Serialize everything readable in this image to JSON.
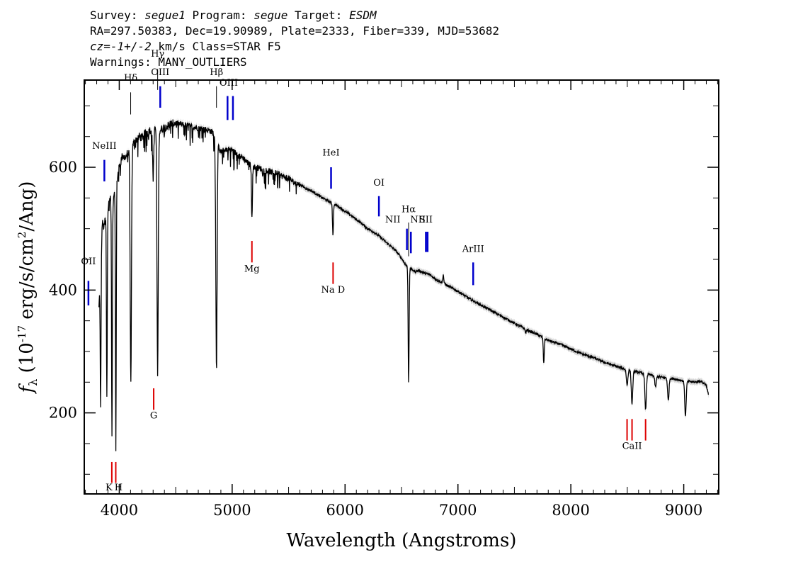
{
  "header": {
    "line1_a": "Survey: ",
    "line1_b": "segue1",
    "line1_c": " Program: ",
    "line1_d": "segue",
    "line1_e": " Target: ",
    "line1_f": "ESDM",
    "line2": "RA=297.50383, Dec=19.90989, Plate=2333, Fiber=339, MJD=53682",
    "line3_a": "cz=-1+/-2",
    "line3_b": " km/s Class=STAR F5",
    "line4": "Warnings: MANY_OUTLIERS"
  },
  "chart_data": {
    "type": "line",
    "xlabel": "Wavelength (Angstroms)",
    "ylabel": "f_λ (10^-17 erg/s/cm^2/Ang)",
    "xlim": [
      3690,
      9310
    ],
    "ylim": [
      68,
      742
    ],
    "x_ticks": [
      4000,
      5000,
      6000,
      7000,
      8000,
      9000
    ],
    "y_ticks": [
      200,
      400,
      600
    ],
    "series": [
      {
        "color": "#000000",
        "points": [
          [
            3820,
            370
          ],
          [
            3835,
            440
          ],
          [
            3850,
            510
          ],
          [
            3865,
            500
          ],
          [
            3880,
            525
          ],
          [
            3900,
            535
          ],
          [
            3920,
            550
          ],
          [
            3940,
            540
          ],
          [
            3955,
            560
          ],
          [
            3975,
            575
          ],
          [
            4000,
            600
          ],
          [
            4030,
            620
          ],
          [
            4050,
            615
          ],
          [
            4080,
            625
          ],
          [
            4100,
            630
          ],
          [
            4130,
            640
          ],
          [
            4150,
            645
          ],
          [
            4180,
            650
          ],
          [
            4200,
            648
          ],
          [
            4230,
            655
          ],
          [
            4260,
            660
          ],
          [
            4300,
            662
          ],
          [
            4330,
            665
          ],
          [
            4360,
            660
          ],
          [
            4400,
            665
          ],
          [
            4450,
            670
          ],
          [
            4500,
            672
          ],
          [
            4550,
            670
          ],
          [
            4600,
            668
          ],
          [
            4650,
            666
          ],
          [
            4700,
            664
          ],
          [
            4750,
            662
          ],
          [
            4800,
            660
          ],
          [
            4830,
            656
          ],
          [
            4900,
            625
          ],
          [
            4950,
            630
          ],
          [
            5000,
            628
          ],
          [
            5050,
            620
          ],
          [
            5100,
            615
          ],
          [
            5150,
            605
          ],
          [
            5200,
            600
          ],
          [
            5250,
            598
          ],
          [
            5300,
            595
          ],
          [
            5350,
            592
          ],
          [
            5400,
            590
          ],
          [
            5450,
            585
          ],
          [
            5500,
            582
          ],
          [
            5550,
            575
          ],
          [
            5600,
            572
          ],
          [
            5650,
            566
          ],
          [
            5700,
            562
          ],
          [
            5750,
            556
          ],
          [
            5800,
            550
          ],
          [
            5850,
            545
          ],
          [
            5900,
            540
          ],
          [
            5950,
            535
          ],
          [
            6000,
            528
          ],
          [
            6050,
            522
          ],
          [
            6100,
            515
          ],
          [
            6150,
            508
          ],
          [
            6200,
            500
          ],
          [
            6250,
            495
          ],
          [
            6300,
            488
          ],
          [
            6350,
            480
          ],
          [
            6400,
            472
          ],
          [
            6450,
            464
          ],
          [
            6500,
            452
          ],
          [
            6540,
            440
          ],
          [
            6620,
            430
          ],
          [
            6650,
            432
          ],
          [
            6700,
            428
          ],
          [
            6750,
            425
          ],
          [
            6800,
            418
          ],
          [
            6900,
            408
          ],
          [
            7000,
            398
          ],
          [
            7100,
            386
          ],
          [
            7200,
            376
          ],
          [
            7300,
            366
          ],
          [
            7400,
            356
          ],
          [
            7500,
            346
          ],
          [
            7600,
            336
          ],
          [
            7700,
            328
          ],
          [
            7800,
            318
          ],
          [
            7900,
            312
          ],
          [
            8000,
            304
          ],
          [
            8100,
            296
          ],
          [
            8200,
            290
          ],
          [
            8300,
            282
          ],
          [
            8400,
            276
          ],
          [
            8500,
            270
          ],
          [
            8600,
            266
          ],
          [
            8700,
            262
          ],
          [
            8800,
            258
          ],
          [
            8900,
            256
          ],
          [
            9000,
            252
          ],
          [
            9100,
            250
          ],
          [
            9150,
            252
          ],
          [
            9200,
            245
          ],
          [
            9220,
            228
          ]
        ],
        "absorption": [
          [
            3835,
            205
          ],
          [
            3890,
            220
          ],
          [
            3935,
            155
          ],
          [
            3970,
            148
          ],
          [
            4102,
            255
          ],
          [
            4340,
            265
          ],
          [
            4861,
            288
          ],
          [
            4300,
            590
          ],
          [
            5175,
            520
          ],
          [
            5270,
            590
          ],
          [
            5893,
            490
          ],
          [
            6563,
            250
          ],
          [
            6870,
            425
          ],
          [
            7600,
            330
          ],
          [
            7760,
            280
          ],
          [
            8498,
            245
          ],
          [
            8542,
            215
          ],
          [
            8662,
            205
          ],
          [
            8750,
            242
          ],
          [
            8863,
            220
          ],
          [
            9015,
            195
          ]
        ]
      }
    ],
    "emission_lines": [
      {
        "label": "OII",
        "x": 3727,
        "y_top": 415,
        "y_bottom": 375,
        "label_y": 442
      },
      {
        "label": "NeIII",
        "x": 3868,
        "y_top": 612,
        "y_bottom": 577,
        "label_y": 630
      },
      {
        "label": "Hδ",
        "x": 4101,
        "y_top": 722,
        "y_bottom": 686,
        "label_y": 741
      },
      {
        "label": "Hγ",
        "x": 4340,
        "y_top": 760,
        "y_bottom": 726,
        "label_y": 780
      },
      {
        "label": "OIII",
        "x": 4363,
        "y_top": 732,
        "y_bottom": 697,
        "label_y": 750
      },
      {
        "label": "Hβ",
        "x": 4861,
        "y_top": 732,
        "y_bottom": 697,
        "label_y": 750
      },
      {
        "label": "OIII",
        "x": 4959,
        "y_top": 716,
        "y_bottom": 677,
        "label_y": 733
      },
      {
        "label": "OIII",
        "x": 5007,
        "y_top": 716,
        "y_bottom": 677,
        "label_y": 733
      },
      {
        "label": "HeI",
        "x": 5876,
        "y_top": 600,
        "y_bottom": 565,
        "label_y": 619
      },
      {
        "label": "OI",
        "x": 6300,
        "y_top": 553,
        "y_bottom": 520,
        "label_y": 570
      },
      {
        "label": "NII",
        "x": 6548,
        "y_top": 500,
        "y_bottom": 465,
        "label_y": 510
      },
      {
        "label": "Hα",
        "x": 6563,
        "y_top": 510,
        "y_bottom": 455,
        "label_y": 527
      },
      {
        "label": "NII",
        "x": 6583,
        "y_top": 495,
        "y_bottom": 460,
        "label_y": 510
      },
      {
        "label": "SII",
        "x": 6716,
        "y_top": 495,
        "y_bottom": 462,
        "label_y": 510
      },
      {
        "label": "SII",
        "x": 6731,
        "y_top": 495,
        "y_bottom": 462,
        "label_y": 510
      },
      {
        "label": "ArIII",
        "x": 7135,
        "y_top": 445,
        "y_bottom": 408,
        "label_y": 462
      }
    ],
    "absorption_lines": [
      {
        "label": "K",
        "x": 3934,
        "y_top": 120,
        "y_bottom": 86,
        "label_y": 74
      },
      {
        "label": "H",
        "x": 3969,
        "y_top": 120,
        "y_bottom": 86,
        "label_y": 74
      },
      {
        "label": "G",
        "x": 4305,
        "y_top": 240,
        "y_bottom": 205,
        "label_y": 191
      },
      {
        "label": "Mg",
        "x": 5175,
        "y_top": 480,
        "y_bottom": 445,
        "label_y": 430
      },
      {
        "label": "Na  D",
        "x": 5894,
        "y_top": 445,
        "y_bottom": 410,
        "label_y": 396
      },
      {
        "label": "CaII",
        "x": 8498,
        "y_top": 190,
        "y_bottom": 155,
        "label_y": 141
      },
      {
        "label": "CaII",
        "x": 8542,
        "y_top": 190,
        "y_bottom": 155,
        "label_y": 141
      },
      {
        "label": "CaII",
        "x": 8662,
        "y_top": 190,
        "y_bottom": 155,
        "label_y": 141
      }
    ],
    "colors": {
      "emission": "#0000cc",
      "absorption": "#dd0000",
      "balmer": "#000000",
      "spectrum": "#000000",
      "error": "#bbbbbb"
    },
    "grid": false,
    "legend": "none"
  }
}
